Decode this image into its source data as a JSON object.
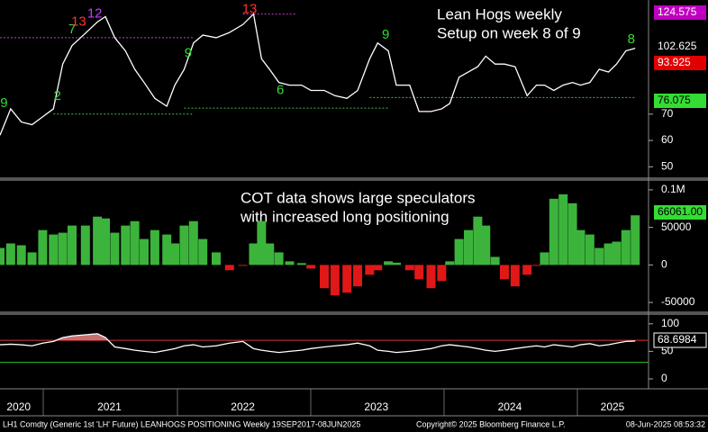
{
  "chart_data": [
    {
      "type": "line",
      "title": "Lean Hogs weekly",
      "subtitle": "Setup on week 8 of 9",
      "x": [
        2020.68,
        2020.76,
        2020.84,
        2020.92,
        2021.0,
        2021.08,
        2021.15,
        2021.22,
        2021.32,
        2021.41,
        2021.47,
        2021.54,
        2021.62,
        2021.69,
        2021.76,
        2021.84,
        2021.93,
        2021.99,
        2022.06,
        2022.13,
        2022.2,
        2022.3,
        2022.4,
        2022.5,
        2022.58,
        2022.64,
        2022.7,
        2022.77,
        2022.85,
        2022.94,
        2023.01,
        2023.11,
        2023.19,
        2023.28,
        2023.36,
        2023.45,
        2023.51,
        2023.59,
        2023.65,
        2023.75,
        2023.82,
        2023.91,
        2023.99,
        2024.05,
        2024.12,
        2024.19,
        2024.26,
        2024.32,
        2024.39,
        2024.46,
        2024.54,
        2024.63,
        2024.7,
        2024.76,
        2024.83,
        2024.9,
        2024.97,
        2025.03,
        2025.1,
        2025.17,
        2025.24,
        2025.3,
        2025.37,
        2025.44
      ],
      "values": [
        62,
        72,
        67,
        66,
        69,
        72,
        89,
        96,
        100.7,
        105,
        107,
        99,
        94,
        87,
        82,
        76,
        73,
        81,
        87,
        97,
        100,
        99,
        101,
        104,
        108,
        91,
        87,
        82,
        81,
        81,
        79,
        79,
        77,
        76,
        79,
        91,
        97,
        94,
        81,
        81,
        71,
        71,
        72,
        74,
        84,
        86,
        88,
        92,
        89,
        89,
        88,
        77,
        81,
        81,
        79,
        81,
        82,
        81,
        82,
        87,
        86,
        89,
        94,
        95
      ],
      "color": "#ffffff",
      "xlim": [
        2020.68,
        2025.54
      ],
      "ylim": [
        46.7,
        112.3
      ],
      "yticks": [
        50,
        60,
        70
      ],
      "price_tags": [
        {
          "value": 124.575,
          "color": "#c000c0"
        },
        {
          "value": 102.625,
          "color": "#000000"
        },
        {
          "value": 93.925,
          "color": "#e00000"
        },
        {
          "value": 76.075,
          "color": "#33dd33"
        }
      ],
      "levels": [
        {
          "value": 99,
          "from": 2020.68,
          "to": 2022.13,
          "color": "#c040c0"
        },
        {
          "value": 108,
          "from": 2022.5,
          "to": 2022.9,
          "color": "#c040c0"
        },
        {
          "value": 70,
          "from": 2021.08,
          "to": 2022.13,
          "color": "#40c040"
        },
        {
          "value": 72.3,
          "from": 2022.06,
          "to": 2023.59,
          "color": "#40c040"
        },
        {
          "value": 76.3,
          "from": 2023.45,
          "to": 2025.44,
          "color": "#40c040"
        }
      ],
      "td_counts": [
        {
          "x": 2020.71,
          "price": 74,
          "label": "9",
          "color": "#33dd33"
        },
        {
          "x": 2021.11,
          "price": 76.7,
          "label": "2",
          "color": "#33dd33"
        },
        {
          "x": 2021.22,
          "price": 102,
          "label": "7",
          "color": "#33dd33"
        },
        {
          "x": 2021.27,
          "price": 105,
          "label": "13",
          "color": "#ff3030"
        },
        {
          "x": 2021.39,
          "price": 108,
          "label": "12",
          "color": "#c040ff"
        },
        {
          "x": 2022.09,
          "price": 93,
          "label": "9",
          "color": "#33dd33"
        },
        {
          "x": 2022.55,
          "price": 109.7,
          "label": "13",
          "color": "#ff3030"
        },
        {
          "x": 2022.78,
          "price": 79,
          "label": "6",
          "color": "#33dd33"
        },
        {
          "x": 2023.57,
          "price": 100,
          "label": "9",
          "color": "#33dd33"
        },
        {
          "x": 2025.41,
          "price": 98.3,
          "label": "8",
          "color": "#33dd33"
        }
      ]
    },
    {
      "type": "bar",
      "title": "COT data shows large speculators",
      "subtitle": "with increased long positioning",
      "x": [
        2020.68,
        2020.76,
        2020.84,
        2020.92,
        2021.0,
        2021.08,
        2021.15,
        2021.22,
        2021.32,
        2021.41,
        2021.47,
        2021.54,
        2021.62,
        2021.69,
        2021.76,
        2021.84,
        2021.93,
        2021.99,
        2022.06,
        2022.13,
        2022.2,
        2022.3,
        2022.4,
        2022.5,
        2022.58,
        2022.64,
        2022.7,
        2022.77,
        2022.85,
        2022.94,
        2023.01,
        2023.11,
        2023.19,
        2023.28,
        2023.36,
        2023.45,
        2023.51,
        2023.59,
        2023.65,
        2023.75,
        2023.82,
        2023.91,
        2023.99,
        2024.05,
        2024.12,
        2024.19,
        2024.26,
        2024.32,
        2024.39,
        2024.46,
        2024.54,
        2024.63,
        2024.7,
        2024.76,
        2024.83,
        2024.9,
        2024.97,
        2025.03,
        2025.1,
        2025.17,
        2025.24,
        2025.3,
        2025.37,
        2025.44
      ],
      "values": [
        22600,
        28600,
        26200,
        16700,
        46400,
        40500,
        42900,
        52400,
        52400,
        64300,
        61900,
        42900,
        52400,
        58300,
        34500,
        46400,
        40500,
        28600,
        52400,
        58300,
        34500,
        16700,
        -7100,
        -1200,
        28600,
        58300,
        28600,
        16700,
        4800,
        2400,
        -4800,
        -31000,
        -40500,
        -36900,
        -28600,
        -13100,
        -7100,
        4800,
        3000,
        -7100,
        -19000,
        -31000,
        -21400,
        4800,
        34500,
        46400,
        64300,
        52400,
        10700,
        -19000,
        -28600,
        -13100,
        -1200,
        16700,
        88100,
        94000,
        82100,
        46400,
        40500,
        22600,
        28600,
        31000,
        46400,
        66061
      ],
      "positive_color": "#3cb43c",
      "negative_color": "#e01818",
      "xlim": [
        2020.68,
        2025.54
      ],
      "ylim": [
        -60700,
        111900
      ],
      "yticks": [
        {
          "value": 100000,
          "label": "0.1M"
        },
        50000,
        0,
        -50000
      ],
      "last_tag": {
        "value": 66061,
        "label": "66061.00",
        "color": "#33dd33"
      }
    },
    {
      "type": "line",
      "x": [
        2020.68,
        2020.76,
        2020.84,
        2020.92,
        2021.0,
        2021.08,
        2021.15,
        2021.22,
        2021.32,
        2021.41,
        2021.47,
        2021.54,
        2021.62,
        2021.69,
        2021.76,
        2021.84,
        2021.93,
        2021.99,
        2022.06,
        2022.13,
        2022.2,
        2022.3,
        2022.4,
        2022.5,
        2022.58,
        2022.64,
        2022.7,
        2022.77,
        2022.85,
        2022.94,
        2023.01,
        2023.11,
        2023.19,
        2023.28,
        2023.36,
        2023.45,
        2023.51,
        2023.59,
        2023.65,
        2023.75,
        2023.82,
        2023.91,
        2023.99,
        2024.05,
        2024.12,
        2024.19,
        2024.26,
        2024.32,
        2024.39,
        2024.46,
        2024.54,
        2024.63,
        2024.7,
        2024.76,
        2024.83,
        2024.9,
        2024.97,
        2025.03,
        2025.1,
        2025.17,
        2025.24,
        2025.3,
        2025.37,
        2025.44
      ],
      "values": [
        62,
        63,
        62,
        60,
        65,
        68,
        75,
        78,
        80,
        82,
        75,
        58,
        55,
        52,
        50,
        48,
        52,
        55,
        60,
        62,
        58,
        60,
        65,
        68,
        55,
        52,
        50,
        48,
        50,
        52,
        55,
        58,
        60,
        62,
        65,
        60,
        52,
        50,
        48,
        50,
        52,
        55,
        60,
        62,
        60,
        58,
        55,
        52,
        50,
        52,
        55,
        58,
        60,
        58,
        62,
        60,
        58,
        62,
        64,
        60,
        62,
        65,
        68,
        68.7
      ],
      "color": "#ffffff",
      "overbought_fill": "#c87070",
      "xlim": [
        2020.68,
        2025.54
      ],
      "ylim": [
        -18,
        116
      ],
      "yticks": [
        100,
        50,
        0
      ],
      "bands": [
        {
          "value": 70,
          "color": "#e03030"
        },
        {
          "value": 30,
          "color": "#30c030"
        }
      ],
      "last_tag": {
        "value": 68.6984,
        "color": "#000000"
      },
      "xticks": [
        {
          "value": 2020.82,
          "label": "2020"
        },
        {
          "value": 2021.5,
          "label": "2021"
        },
        {
          "value": 2022.5,
          "label": "2022"
        },
        {
          "value": 2023.5,
          "label": "2023"
        },
        {
          "value": 2024.5,
          "label": "2024"
        },
        {
          "value": 2025.27,
          "label": "2025"
        }
      ]
    }
  ],
  "footer": {
    "left": "LH1 Comdty (Generic 1st 'LH' Future) LEANHOGS POSITIONING  Weekly 19SEP2017-08JUN2025",
    "middle": "Copyright© 2025 Bloomberg Finance L.P.",
    "right": "08-Jun-2025 08:53:32"
  }
}
